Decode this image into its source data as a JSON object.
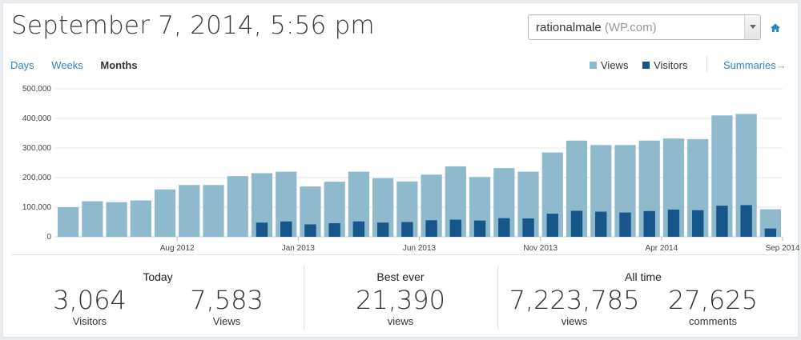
{
  "header": {
    "title": "September 7, 2014, 5:56 pm",
    "blog_name": "rationalmale",
    "blog_type": "(WP.com)"
  },
  "tabs": [
    {
      "label": "Days",
      "active": false
    },
    {
      "label": "Weeks",
      "active": false
    },
    {
      "label": "Months",
      "active": true
    }
  ],
  "legend": {
    "views_label": "Views",
    "visitors_label": "Visitors",
    "views_color": "#8fbacd",
    "visitors_color": "#16568a"
  },
  "summaries_label": "Summaries",
  "summaries_arrow": "→",
  "chart_data": {
    "type": "bar",
    "title": "",
    "xlabel": "",
    "ylabel": "",
    "ylim": [
      0,
      500000
    ],
    "y_ticks": [
      "0",
      "100,000",
      "200,000",
      "300,000",
      "400,000",
      "500,000"
    ],
    "x_tick_labels": [
      {
        "index": 4,
        "label": "Aug 2012"
      },
      {
        "index": 9,
        "label": "Jan 2013"
      },
      {
        "index": 14,
        "label": "Jun 2013"
      },
      {
        "index": 19,
        "label": "Nov 2013"
      },
      {
        "index": 24,
        "label": "Apr 2014"
      },
      {
        "index": 29,
        "label": "Sep 2014"
      }
    ],
    "series": [
      {
        "name": "Views",
        "values": [
          100000,
          120000,
          117000,
          123000,
          160000,
          175000,
          175000,
          205000,
          215000,
          220000,
          170000,
          186000,
          220000,
          198000,
          187000,
          210000,
          238000,
          202000,
          232000,
          220000,
          285000,
          325000,
          310000,
          310000,
          325000,
          332000,
          330000,
          410000,
          415000,
          93000
        ]
      },
      {
        "name": "Visitors",
        "values": [
          null,
          null,
          null,
          null,
          null,
          null,
          null,
          null,
          48000,
          52000,
          42000,
          46000,
          52000,
          48000,
          50000,
          56000,
          58000,
          55000,
          63000,
          62000,
          78000,
          88000,
          85000,
          82000,
          87000,
          92000,
          90000,
          105000,
          107000,
          28000
        ]
      }
    ]
  },
  "stats": {
    "today": {
      "heading": "Today",
      "visitors_value": "3,064",
      "visitors_label": "Visitors",
      "views_value": "7,583",
      "views_label": "Views"
    },
    "best": {
      "heading": "Best ever",
      "value": "21,390",
      "label": "views"
    },
    "alltime": {
      "heading": "All time",
      "views_value": "7,223,785",
      "views_label": "views",
      "comments_value": "27,625",
      "comments_label": "comments"
    }
  }
}
